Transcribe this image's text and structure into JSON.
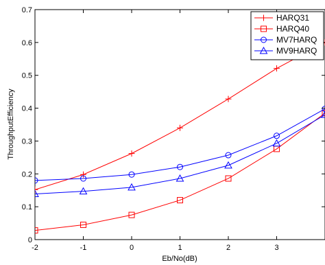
{
  "chart_data": {
    "type": "line",
    "xlabel": "Eb/No(dB)",
    "ylabel": "ThroughputEfficiency",
    "xlim": [
      -2,
      4
    ],
    "ylim": [
      0,
      0.7
    ],
    "x_ticks": [
      "-2",
      "-1",
      "0",
      "1",
      "2",
      "3"
    ],
    "y_ticks": [
      "0",
      "0.1",
      "0.2",
      "0.3",
      "0.4",
      "0.5",
      "0.6",
      "0.7"
    ],
    "x_tick_values": [
      -2,
      -1,
      0,
      1,
      2,
      3
    ],
    "y_tick_values": [
      0,
      0.1,
      0.2,
      0.3,
      0.4,
      0.5,
      0.6,
      0.7
    ],
    "grid": false,
    "legend_position": "top-right",
    "series": [
      {
        "name": "HARQ31",
        "color": "#ff0000",
        "marker": "plus",
        "x": [
          -2,
          -1,
          0,
          1,
          2,
          3,
          4
        ],
        "y": [
          0.152,
          0.198,
          0.262,
          0.34,
          0.428,
          0.521,
          0.6
        ]
      },
      {
        "name": "HARQ40",
        "color": "#ff0000",
        "marker": "square",
        "x": [
          -2,
          -1,
          0,
          1,
          2,
          3,
          4
        ],
        "y": [
          0.028,
          0.045,
          0.075,
          0.12,
          0.186,
          0.276,
          0.385
        ]
      },
      {
        "name": "MV7HARQ",
        "color": "#0000ff",
        "marker": "circle",
        "x": [
          -2,
          -1,
          0,
          1,
          2,
          3,
          4
        ],
        "y": [
          0.18,
          0.186,
          0.198,
          0.221,
          0.257,
          0.316,
          0.398
        ]
      },
      {
        "name": "MV9HARQ",
        "color": "#0000ff",
        "marker": "triangle",
        "x": [
          -2,
          -1,
          0,
          1,
          2,
          3,
          4
        ],
        "y": [
          0.139,
          0.147,
          0.159,
          0.186,
          0.226,
          0.293,
          0.38
        ]
      }
    ]
  }
}
